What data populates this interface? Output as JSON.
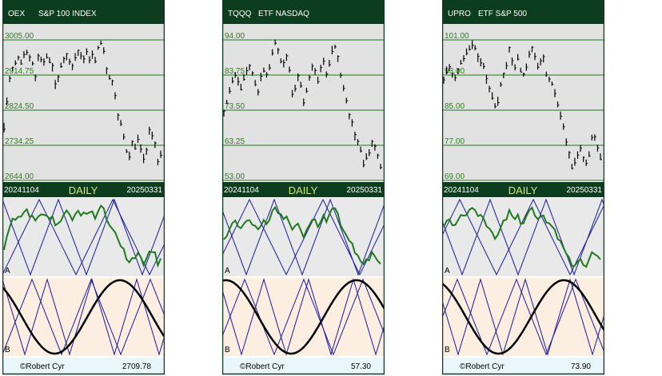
{
  "colors": {
    "header_bg": "#0c3d1e",
    "header_text": "#ffffff",
    "price_bg": "#e2e2e2",
    "price_grid": "#1a7a1a",
    "price_label": "#2e7d1e",
    "date_bar_bg": "#0c3d1e",
    "date_bar_text": "#ffffff",
    "daily_text": "#d8e87a",
    "panel_a_bg": "#e9e9e9",
    "panel_b_bg": "#fdeee2",
    "triangle_line": "#1a1a9e",
    "cycle_line": "#1f7a1f",
    "wave_line": "#000000",
    "footer_bg": "#e9f6fb",
    "border": "#0c3d1e"
  },
  "chart_data": [
    {
      "type": "line",
      "symbol": "OEX",
      "name": "S&P 100 INDEX",
      "y_ticks": [
        "3005.00",
        "2914.75",
        "2824.50",
        "2734.25",
        "2644.00"
      ],
      "ylim": [
        2644.0,
        3005.0
      ],
      "start_date": "20241104",
      "end_date": "20250331",
      "period_label": "DAILY",
      "panel_a_label": "A",
      "panel_b_label": "B",
      "credit": "©Robert Cyr",
      "last_value": "2709.78",
      "series": [
        {
          "values": [
            2780,
            2850,
            2905,
            2930,
            2945,
            2958,
            2948,
            2964,
            2972,
            2960,
            2945,
            2912,
            2960,
            2955,
            2950,
            2963,
            2950,
            2935,
            2890,
            2905,
            2940,
            2955,
            2965,
            2950,
            2940,
            2960,
            2975,
            2968,
            2955,
            2972,
            2958,
            2965,
            2950,
            2986,
            2999,
            2980,
            2930,
            2910,
            2895,
            2860,
            2810,
            2790,
            2760,
            2720,
            2705,
            2740,
            2730,
            2750,
            2725,
            2700,
            2720,
            2770,
            2760,
            2740,
            2690,
            2710
          ]
        }
      ]
    },
    {
      "type": "line",
      "symbol": "TQQQ",
      "name": "ETF NASDAQ",
      "y_ticks": [
        "94.00",
        "83.75",
        "73.50",
        "63.25",
        "53.00"
      ],
      "ylim": [
        53.0,
        94.0
      ],
      "start_date": "20241104",
      "end_date": "20250331",
      "period_label": "DAILY",
      "panel_a_label": "A",
      "panel_b_label": "B",
      "credit": "©Robert Cyr",
      "last_value": "57.30",
      "series": [
        {
          "values": [
            73,
            76,
            79,
            82,
            84,
            82,
            80,
            83,
            85,
            86,
            84,
            81,
            79,
            83,
            85,
            84,
            86,
            90,
            93,
            91,
            88,
            87,
            89,
            85,
            78,
            80,
            83,
            81,
            76,
            79,
            83,
            86,
            85,
            82,
            86,
            88,
            84,
            87,
            91,
            92,
            89,
            84,
            80,
            76,
            72,
            70,
            66,
            64,
            62,
            58,
            60,
            61,
            64,
            63,
            60,
            57
          ]
        }
      ]
    },
    {
      "type": "line",
      "symbol": "UPRO",
      "name": "ETF S&P 500",
      "y_ticks": [
        "101.00",
        "93.00",
        "85.00",
        "77.00",
        "69.00"
      ],
      "ylim": [
        69.0,
        101.0
      ],
      "start_date": "20241104",
      "end_date": "20250331",
      "period_label": "DAILY",
      "panel_a_label": "A",
      "panel_b_label": "B",
      "credit": "©Robert Cyr",
      "last_value": "73.90",
      "series": [
        {
          "values": [
            92,
            94,
            95,
            93,
            92,
            94,
            96,
            97,
            98,
            99,
            100,
            99,
            97,
            96,
            95,
            92,
            90,
            88,
            86,
            87,
            91,
            93,
            95,
            99,
            96,
            95,
            97,
            94,
            93,
            95,
            98,
            99,
            97,
            95,
            96,
            97,
            93,
            92,
            91,
            89,
            86,
            84,
            81,
            78,
            75,
            72,
            73,
            75,
            76,
            74,
            73,
            75,
            79,
            79,
            76,
            74
          ]
        }
      ]
    }
  ]
}
